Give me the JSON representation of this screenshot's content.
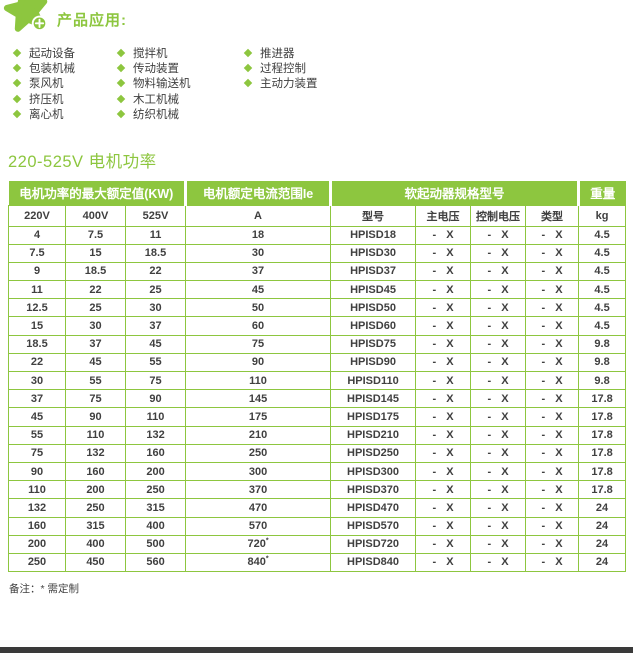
{
  "applications": {
    "title": "产品应用:",
    "columns": [
      [
        "起动设备",
        "包装机械",
        "泵风机",
        "挤压机",
        "离心机"
      ],
      [
        "搅拌机",
        "传动装置",
        "物料输送机",
        "木工机械",
        "纺织机械"
      ],
      [
        "推进器",
        "过程控制",
        "主动力装置"
      ]
    ]
  },
  "section_title": "220-525V 电机功率",
  "table": {
    "group_headers": [
      "电机功率的最大额定值(KW)",
      "电机额定电流范围Ie",
      "软起动器规格型号",
      "重量"
    ],
    "sub_headers": [
      "220V",
      "400V",
      "525V",
      "A",
      "型号",
      "主电压",
      "控制电压",
      "类型",
      "kg"
    ],
    "rows": [
      [
        "4",
        "7.5",
        "11",
        "18",
        "HPISD18",
        "- X",
        "- X",
        "- X",
        "4.5"
      ],
      [
        "7.5",
        "15",
        "18.5",
        "30",
        "HPISD30",
        "- X",
        "- X",
        "- X",
        "4.5"
      ],
      [
        "9",
        "18.5",
        "22",
        "37",
        "HPISD37",
        "- X",
        "- X",
        "- X",
        "4.5"
      ],
      [
        "11",
        "22",
        "25",
        "45",
        "HPISD45",
        "- X",
        "- X",
        "- X",
        "4.5"
      ],
      [
        "12.5",
        "25",
        "30",
        "50",
        "HPISD50",
        "- X",
        "- X",
        "- X",
        "4.5"
      ],
      [
        "15",
        "30",
        "37",
        "60",
        "HPISD60",
        "- X",
        "- X",
        "- X",
        "4.5"
      ],
      [
        "18.5",
        "37",
        "45",
        "75",
        "HPISD75",
        "- X",
        "- X",
        "- X",
        "9.8"
      ],
      [
        "22",
        "45",
        "55",
        "90",
        "HPISD90",
        "- X",
        "- X",
        "- X",
        "9.8"
      ],
      [
        "30",
        "55",
        "75",
        "110",
        "HPISD110",
        "- X",
        "- X",
        "- X",
        "9.8"
      ],
      [
        "37",
        "75",
        "90",
        "145",
        "HPISD145",
        "- X",
        "- X",
        "- X",
        "17.8"
      ],
      [
        "45",
        "90",
        "110",
        "175",
        "HPISD175",
        "- X",
        "- X",
        "- X",
        "17.8"
      ],
      [
        "55",
        "110",
        "132",
        "210",
        "HPISD210",
        "- X",
        "- X",
        "- X",
        "17.8"
      ],
      [
        "75",
        "132",
        "160",
        "250",
        "HPISD250",
        "- X",
        "- X",
        "- X",
        "17.8"
      ],
      [
        "90",
        "160",
        "200",
        "300",
        "HPISD300",
        "- X",
        "- X",
        "- X",
        "17.8"
      ],
      [
        "110",
        "200",
        "250",
        "370",
        "HPISD370",
        "- X",
        "- X",
        "- X",
        "17.8"
      ],
      [
        "132",
        "250",
        "315",
        "470",
        "HPISD470",
        "- X",
        "- X",
        "- X",
        "24"
      ],
      [
        "160",
        "315",
        "400",
        "570",
        "HPISD570",
        "- X",
        "- X",
        "- X",
        "24"
      ],
      [
        "200",
        "400",
        "500",
        "720*",
        "HPISD720",
        "- X",
        "- X",
        "- X",
        "24"
      ],
      [
        "250",
        "450",
        "560",
        "840*",
        "HPISD840",
        "- X",
        "- X",
        "- X",
        "24"
      ]
    ]
  },
  "note": "备注：* 需定制",
  "colors": {
    "accent_green": "#8dc63f",
    "body_text": "#3f3f3f",
    "header_text": "#ffffff",
    "footer_bar": "#3a3a3a"
  }
}
